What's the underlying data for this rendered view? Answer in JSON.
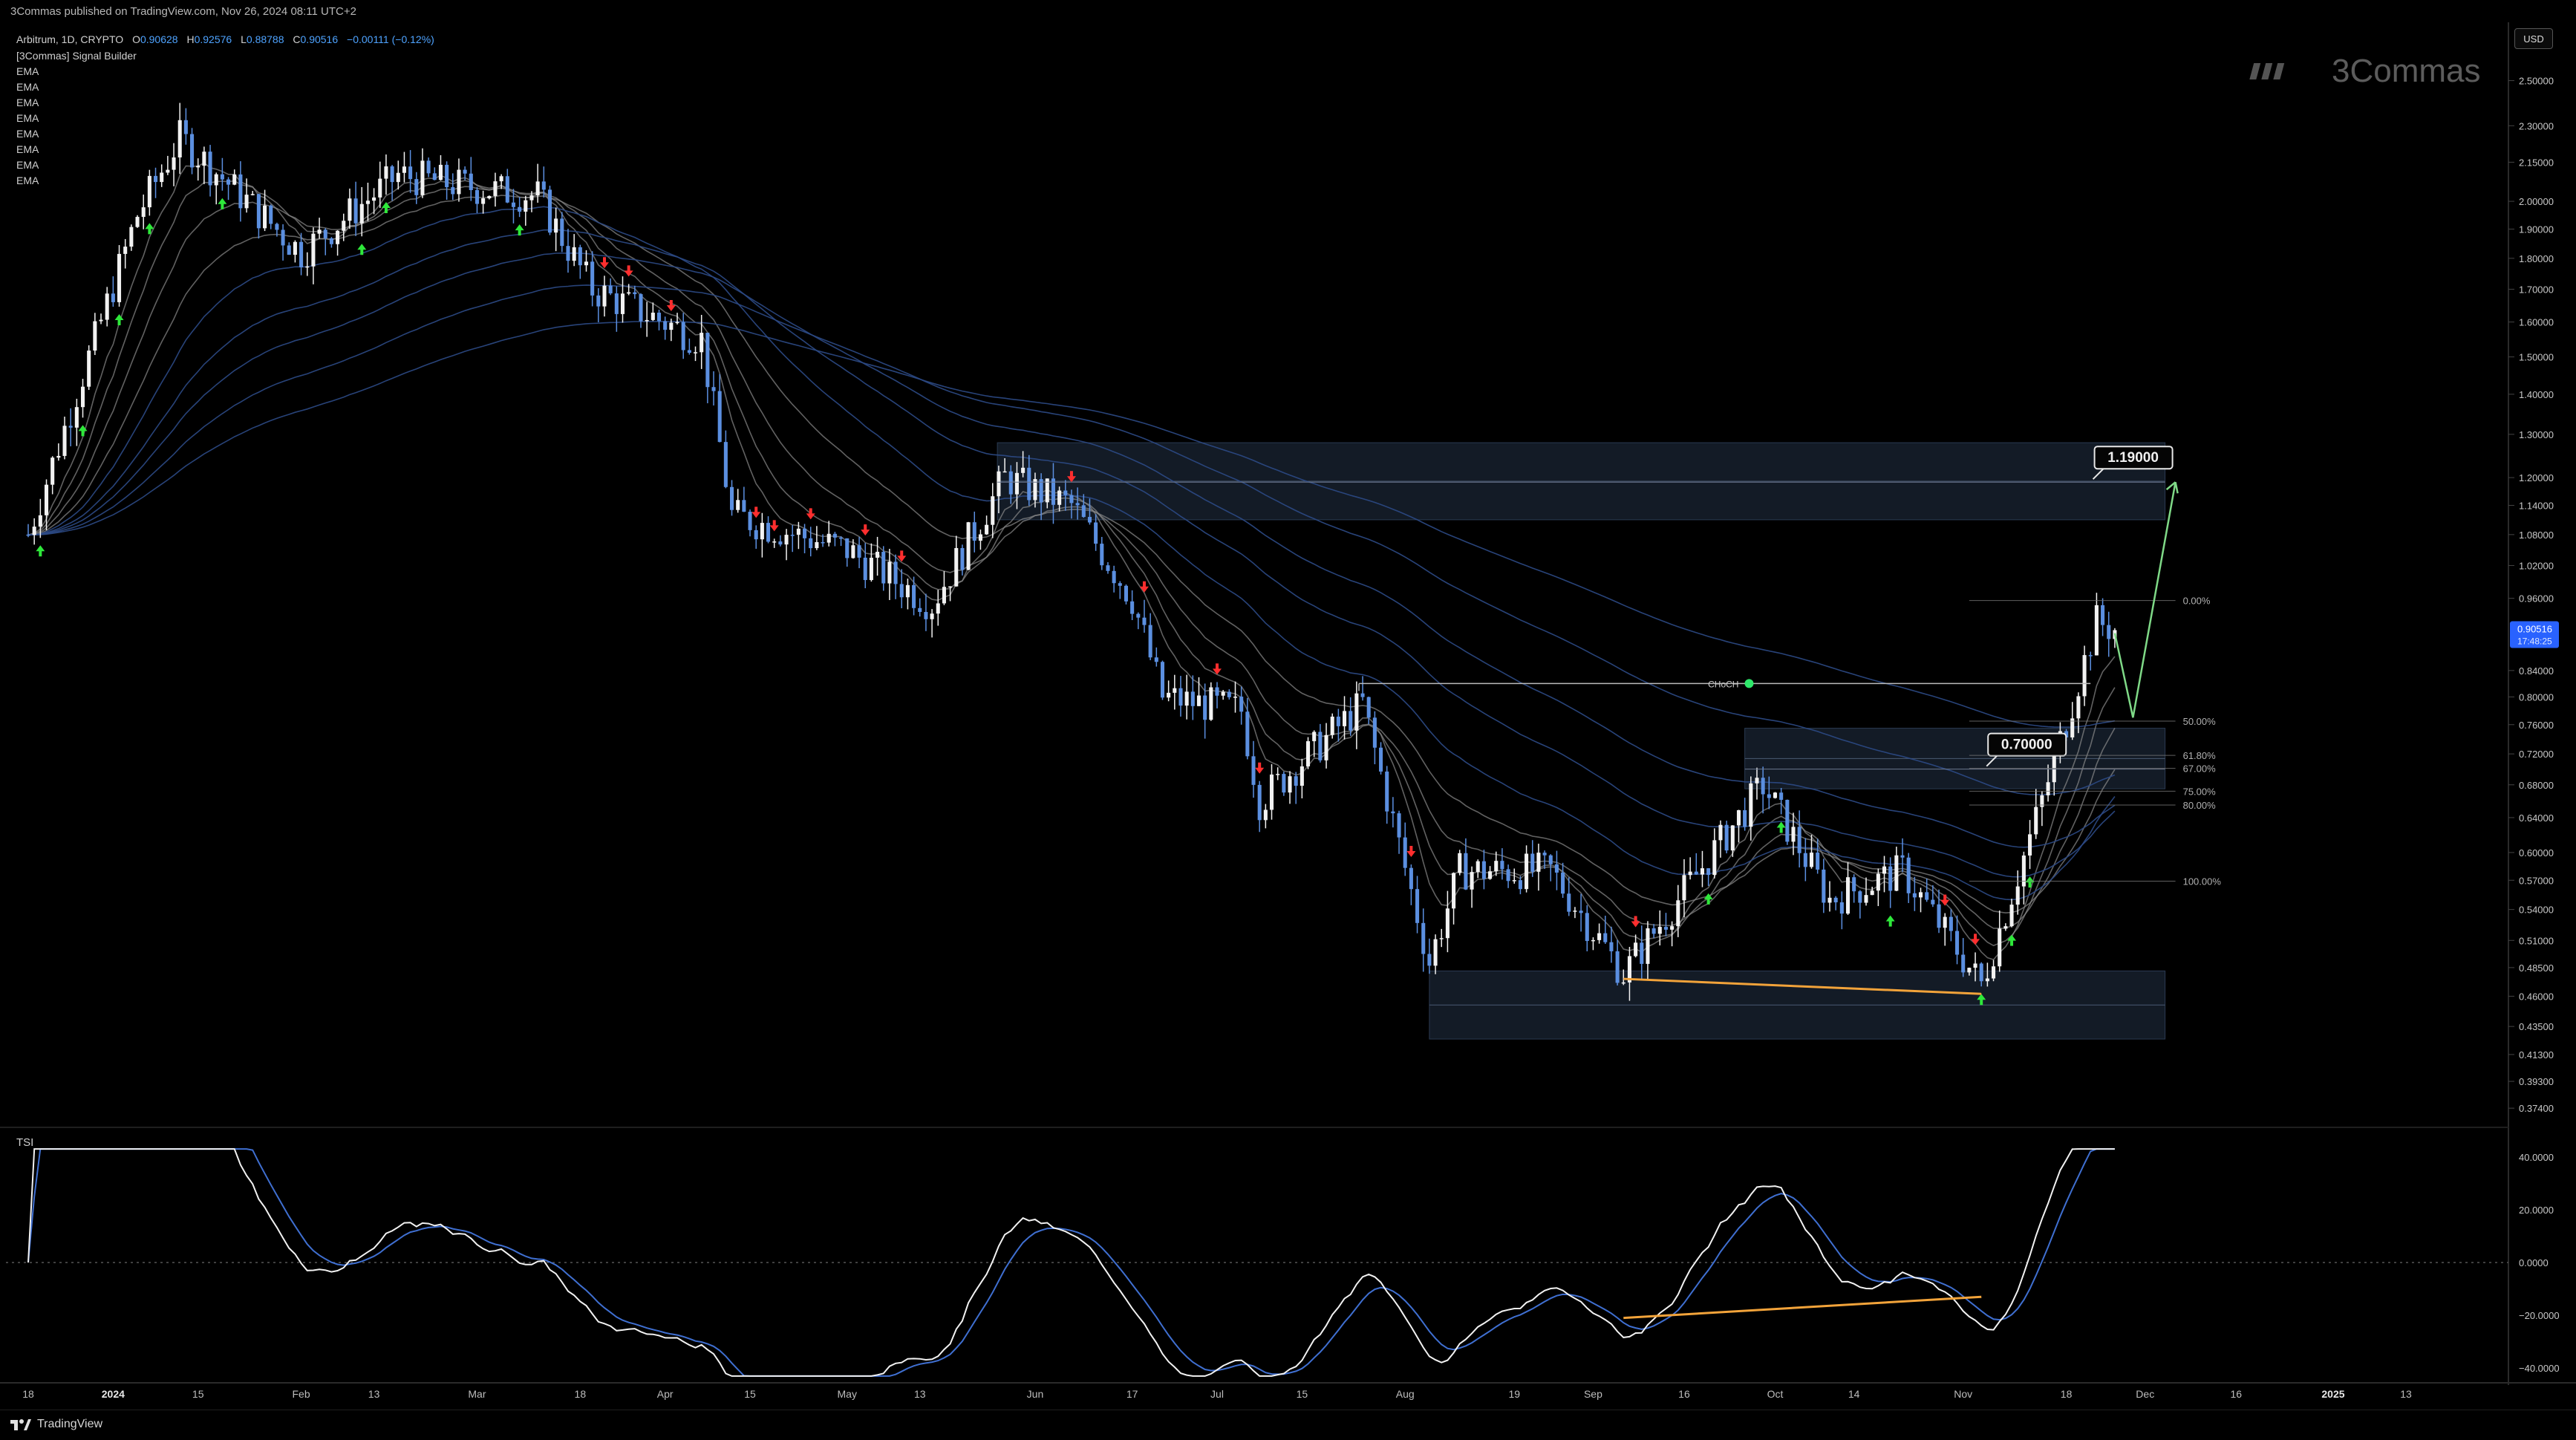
{
  "header": {
    "publisher_line": "3Commas published on TradingView.com, Nov 26, 2024 08:11 UTC+2",
    "symbol_line": "Arbitrum, 1D, CRYPTO",
    "open_label": "O",
    "open_value": "0.90628",
    "high_label": "H",
    "high_value": "0.92576",
    "low_label": "L",
    "low_value": "0.88788",
    "close_label": "C",
    "close_value": "0.90516",
    "change_value": "−0.00111 (−0.12%)"
  },
  "indicators": [
    "[3Commas] Signal Builder",
    "EMA",
    "EMA",
    "EMA",
    "EMA",
    "EMA",
    "EMA",
    "EMA",
    "EMA"
  ],
  "watermark": "3Commas",
  "currency_button": "USD",
  "tsi_label": "TSI",
  "brand": "TradingView",
  "price_axis": [
    "2.50000",
    "2.30000",
    "2.15000",
    "2.00000",
    "1.90000",
    "1.80000",
    "1.70000",
    "1.60000",
    "1.50000",
    "1.40000",
    "1.30000",
    "1.20000",
    "1.14000",
    "1.08000",
    "1.02000",
    "0.96000",
    "0.84000",
    "0.80000",
    "0.76000",
    "0.72000",
    "0.68000",
    "0.64000",
    "0.60000",
    "0.57000",
    "0.54000",
    "0.51000",
    "0.48500",
    "0.46000",
    "0.43500",
    "0.41300",
    "0.39300",
    "0.37400"
  ],
  "last_price_tag": {
    "price": "0.90516",
    "countdown": "17:48:25"
  },
  "tsi_axis": [
    "40.0000",
    "20.0000",
    "0.0000",
    "−20.0000",
    "−40.0000"
  ],
  "time_axis": [
    "18",
    "2024",
    "15",
    "Feb",
    "13",
    "Mar",
    "18",
    "Apr",
    "15",
    "May",
    "13",
    "Jun",
    "17",
    "Jul",
    "15",
    "Aug",
    "19",
    "Sep",
    "16",
    "Oct",
    "14",
    "Nov",
    "18",
    "Dec",
    "16",
    "2025",
    "13"
  ],
  "annotations": {
    "upper_target": "1.19000",
    "mid_target": "0.70000",
    "choch_label": "CHoCH",
    "fib_levels": [
      "0.00%",
      "50.00%",
      "61.80%",
      "67.00%",
      "75.00%",
      "80.00%",
      "100.00%"
    ]
  },
  "chart_data": {
    "type": "candlestick",
    "title": "Arbitrum, 1D, CRYPTO",
    "y_scale": "log",
    "ylim": [
      0.37,
      2.6
    ],
    "tsi_ylim": [
      -45,
      45
    ],
    "x_range": [
      "2023-12-18",
      "2025-01-13"
    ],
    "last_close": 0.90516,
    "key_points": [
      {
        "date": "2023-12-18",
        "close": 1.08
      },
      {
        "date": "2024-01-05",
        "close": 1.95
      },
      {
        "date": "2024-01-12",
        "close": 2.25
      },
      {
        "date": "2024-02-01",
        "close": 1.82
      },
      {
        "date": "2024-02-17",
        "close": 2.1
      },
      {
        "date": "2024-03-01",
        "close": 2.05
      },
      {
        "date": "2024-03-11",
        "close": 2.02
      },
      {
        "date": "2024-03-20",
        "close": 1.7
      },
      {
        "date": "2024-04-07",
        "close": 1.55
      },
      {
        "date": "2024-04-12",
        "close": 1.12
      },
      {
        "date": "2024-05-01",
        "close": 1.05
      },
      {
        "date": "2024-05-15",
        "close": 0.95
      },
      {
        "date": "2024-05-27",
        "close": 1.2
      },
      {
        "date": "2024-06-07",
        "close": 1.14
      },
      {
        "date": "2024-06-17",
        "close": 0.96
      },
      {
        "date": "2024-06-22",
        "close": 0.8
      },
      {
        "date": "2024-07-05",
        "close": 0.78
      },
      {
        "date": "2024-07-08",
        "close": 0.66
      },
      {
        "date": "2024-07-25",
        "close": 0.79
      },
      {
        "date": "2024-08-05",
        "close": 0.49
      },
      {
        "date": "2024-08-10",
        "close": 0.58
      },
      {
        "date": "2024-08-25",
        "close": 0.58
      },
      {
        "date": "2024-09-06",
        "close": 0.48
      },
      {
        "date": "2024-09-29",
        "close": 0.68
      },
      {
        "date": "2024-10-10",
        "close": 0.55
      },
      {
        "date": "2024-10-22",
        "close": 0.58
      },
      {
        "date": "2024-11-04",
        "close": 0.47
      },
      {
        "date": "2024-11-14",
        "close": 0.66
      },
      {
        "date": "2024-11-23",
        "close": 0.92
      },
      {
        "date": "2024-11-26",
        "close": 0.90516
      }
    ],
    "zones": [
      {
        "low": 1.11,
        "high": 1.28
      },
      {
        "low": 0.675,
        "high": 0.755
      },
      {
        "low": 0.425,
        "high": 0.482
      }
    ],
    "targets": [
      1.19,
      0.7
    ],
    "choch_level": 0.82,
    "fib_retracement": [
      {
        "label": "0.00%",
        "price": 0.956
      },
      {
        "label": "50.00%",
        "price": 0.765
      },
      {
        "label": "61.80%",
        "price": 0.718
      },
      {
        "label": "67.00%",
        "price": 0.701
      },
      {
        "label": "75.00%",
        "price": 0.672
      },
      {
        "label": "80.00%",
        "price": 0.655
      },
      {
        "label": "100.00%",
        "price": 0.569
      }
    ],
    "projection": [
      {
        "date": "2024-11-26",
        "price": 0.9
      },
      {
        "date": "2024-11-29",
        "price": 0.77
      },
      {
        "date": "2024-12-06",
        "price": 1.19
      }
    ],
    "price_divergence": [
      {
        "date": "2024-09-06",
        "price": 0.475
      },
      {
        "date": "2024-11-04",
        "price": 0.462
      }
    ],
    "tsi_divergence": [
      {
        "date": "2024-09-06",
        "value": -21
      },
      {
        "date": "2024-11-04",
        "value": -13
      }
    ]
  }
}
